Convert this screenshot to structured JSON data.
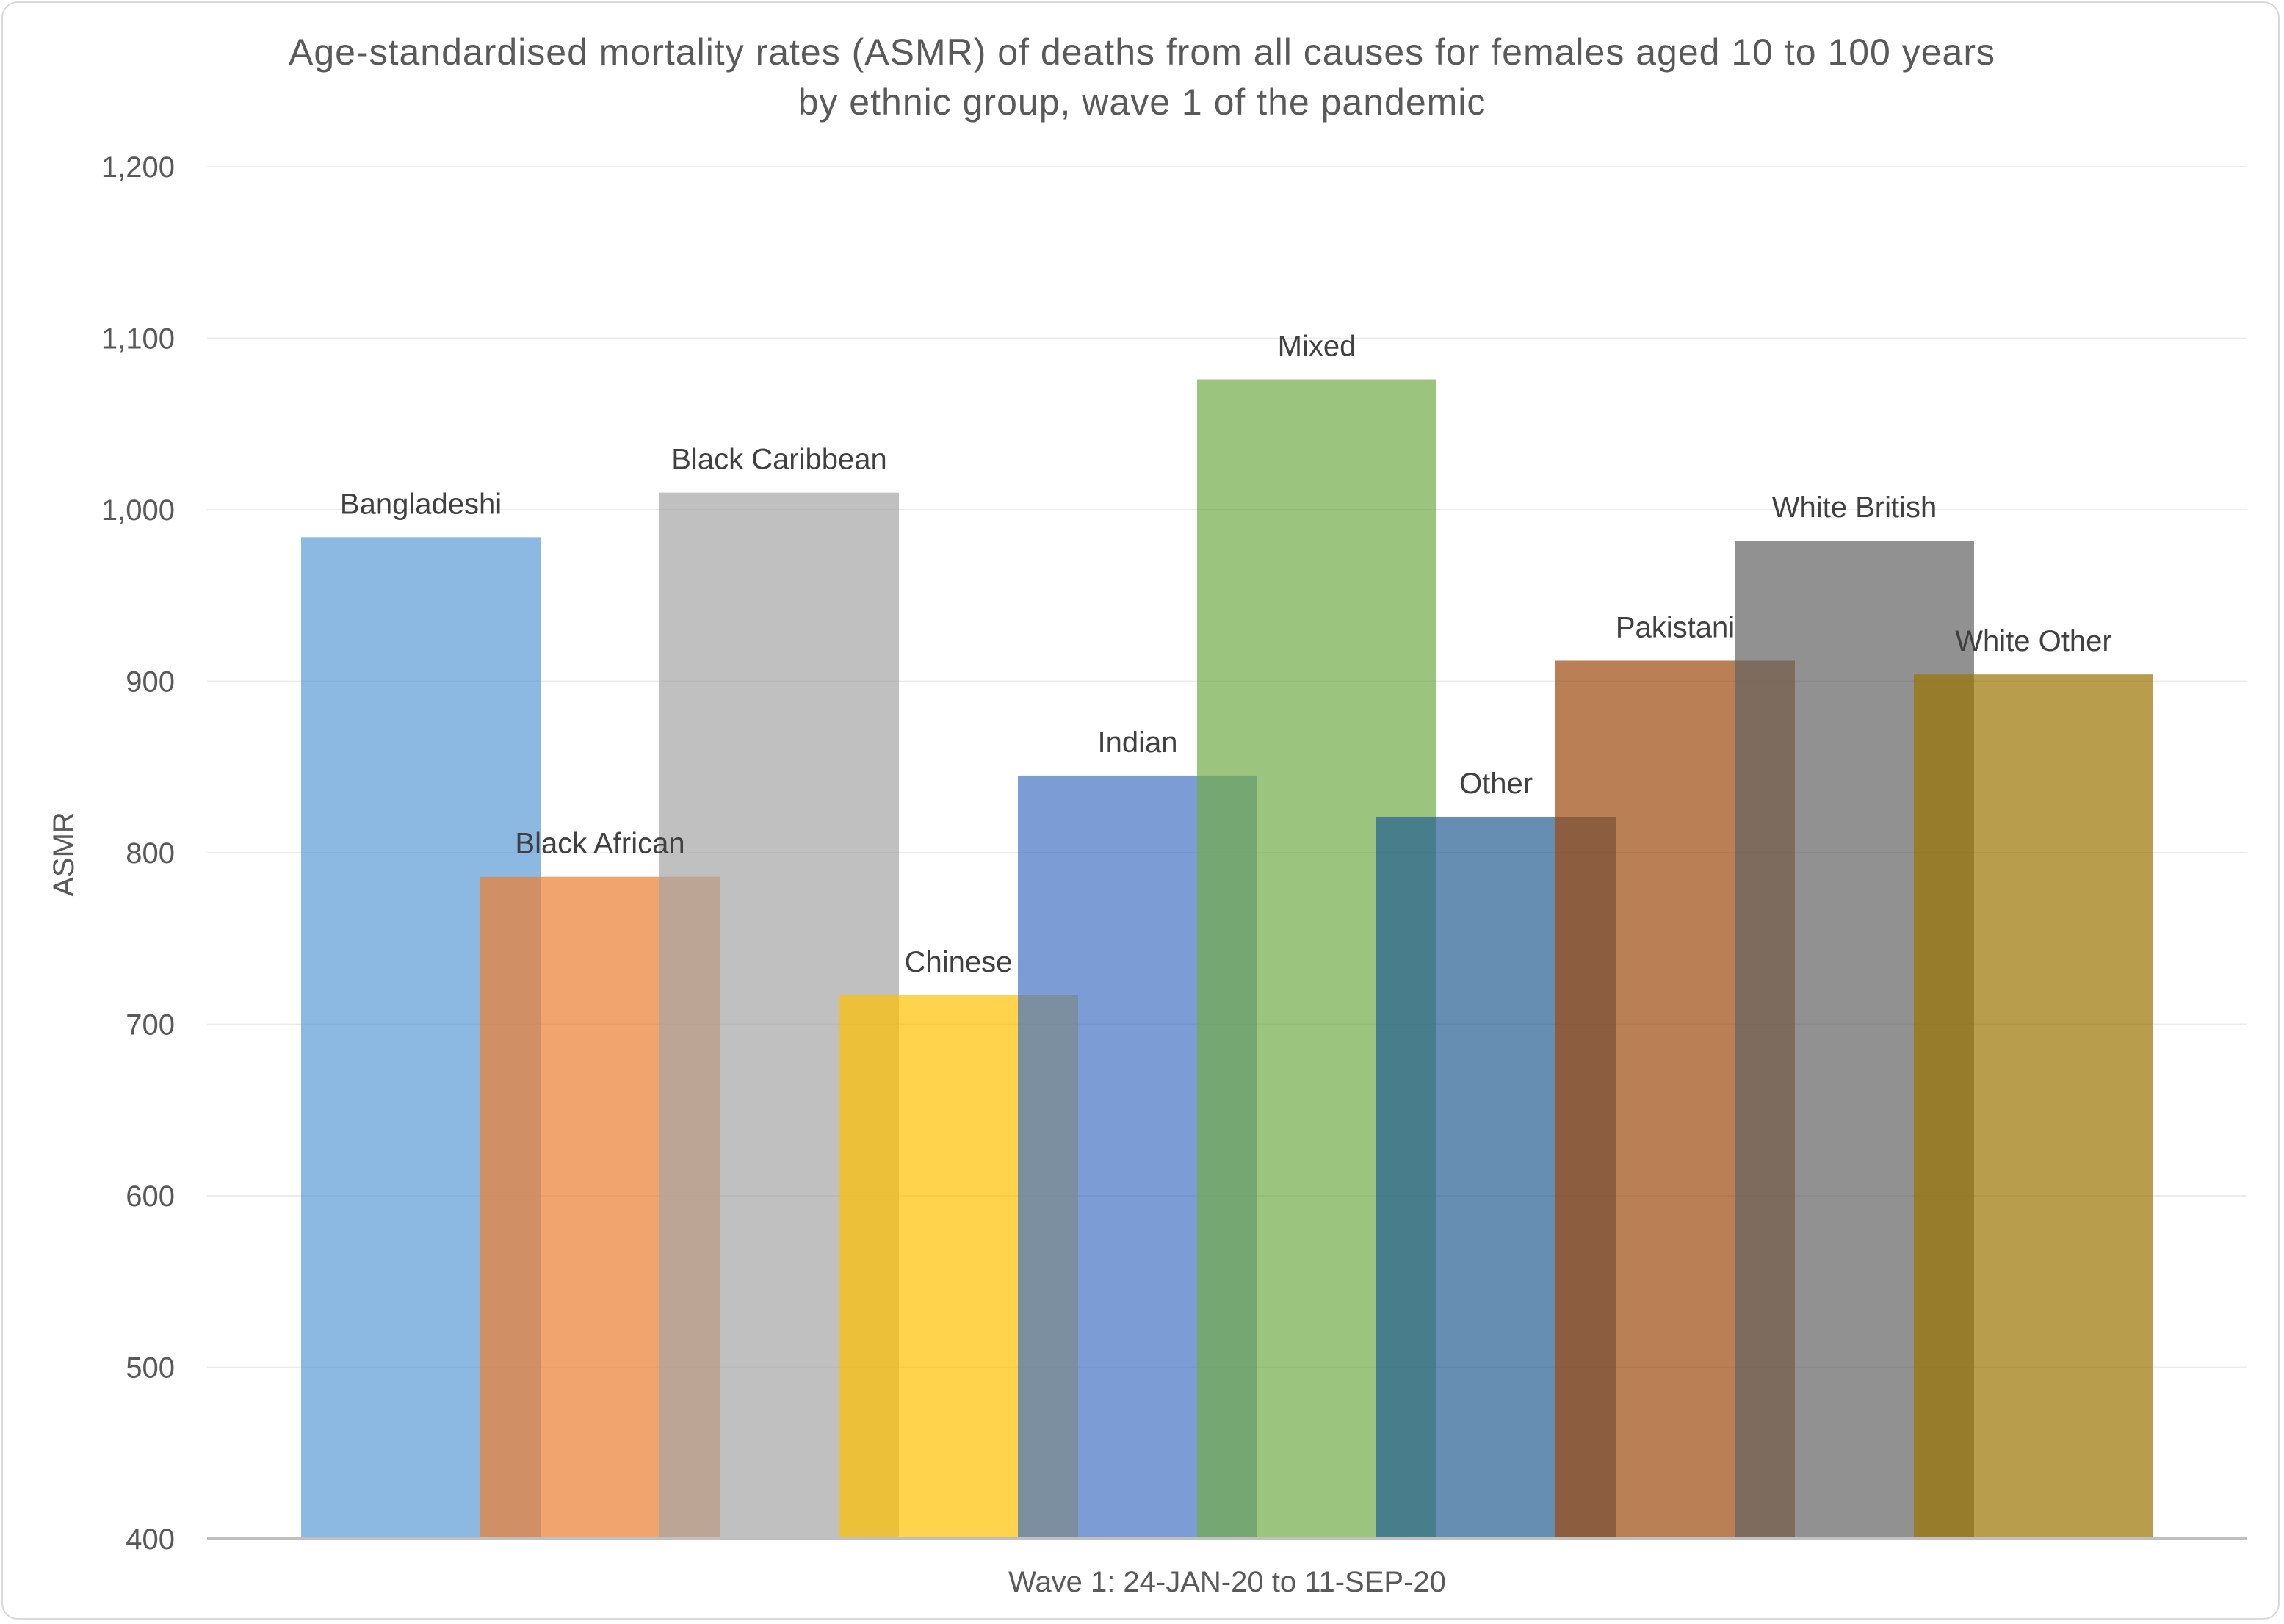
{
  "chart_data": {
    "type": "bar",
    "title_lines": [
      "Age-standardised mortality rates (ASMR) of deaths from all causes for females aged 10 to 100 years",
      "by ethnic group, wave 1 of the pandemic"
    ],
    "xlabel": "Wave 1: 24-JAN-20 to 11-SEP-20",
    "ylabel": "ASMR",
    "ylim": [
      400,
      1200
    ],
    "yticks": [
      400,
      500,
      600,
      700,
      800,
      900,
      1000,
      1100,
      1200
    ],
    "ytick_labels": [
      "400",
      "500",
      "600",
      "700",
      "800",
      "900",
      "1,000",
      "1,100",
      "1,200"
    ],
    "grid": true,
    "legend": "none (data labels above bars)",
    "series": [
      {
        "name": "Bangladeshi",
        "value": 984,
        "color": "#5b9bd5"
      },
      {
        "name": "Black African",
        "value": 786,
        "color": "#ed7d31"
      },
      {
        "name": "Black Caribbean",
        "value": 1010,
        "color": "#a5a5a5"
      },
      {
        "name": "Chinese",
        "value": 717,
        "color": "#ffc000"
      },
      {
        "name": "Indian",
        "value": 845,
        "color": "#4472c4"
      },
      {
        "name": "Mixed",
        "value": 1076,
        "color": "#70ad47"
      },
      {
        "name": "Other",
        "value": 821,
        "color": "#255e91"
      },
      {
        "name": "Pakistani",
        "value": 912,
        "color": "#9e480e"
      },
      {
        "name": "White British",
        "value": 982,
        "color": "#636363"
      },
      {
        "name": "White Other",
        "value": 904,
        "color": "#997300"
      }
    ]
  }
}
